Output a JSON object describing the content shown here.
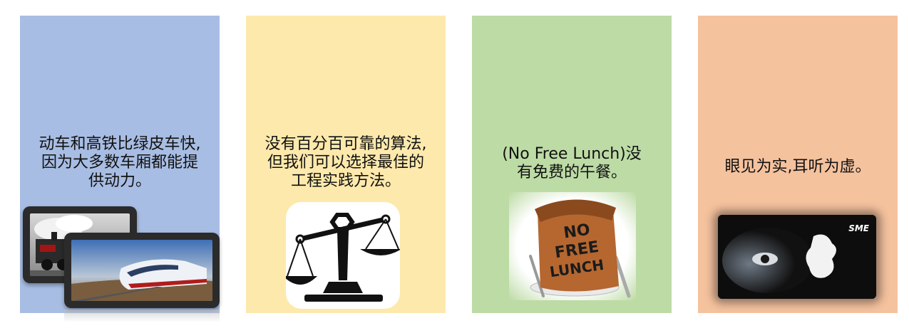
{
  "colors": {
    "card1_bg": "#a8bde3",
    "card2_bg": "#fde9ac",
    "card3_bg": "#bddba5",
    "card4_bg": "#f5c29e"
  },
  "cards": [
    {
      "lines": [
        "动车和高铁比绿皮车快,",
        "因为大多数车厢都能提",
        "供动力。"
      ],
      "image": "steam-and-bullet-train-tablets"
    },
    {
      "lines": [
        "没有百分百可靠的算法,",
        "但我们可以选择最佳的",
        "工程实践方法。"
      ],
      "image": "balance-scale-icon"
    },
    {
      "lines": [
        "(No Free Lunch)没",
        "有免费的午餐。"
      ],
      "image": "no-free-lunch-bag"
    },
    {
      "lines": [
        "眼见为实,耳听为虚。"
      ],
      "image": "eye-peeking-through-hole",
      "badge": "SME"
    }
  ],
  "card3_bag_text": [
    "NO",
    "FREE",
    "LUNCH"
  ]
}
